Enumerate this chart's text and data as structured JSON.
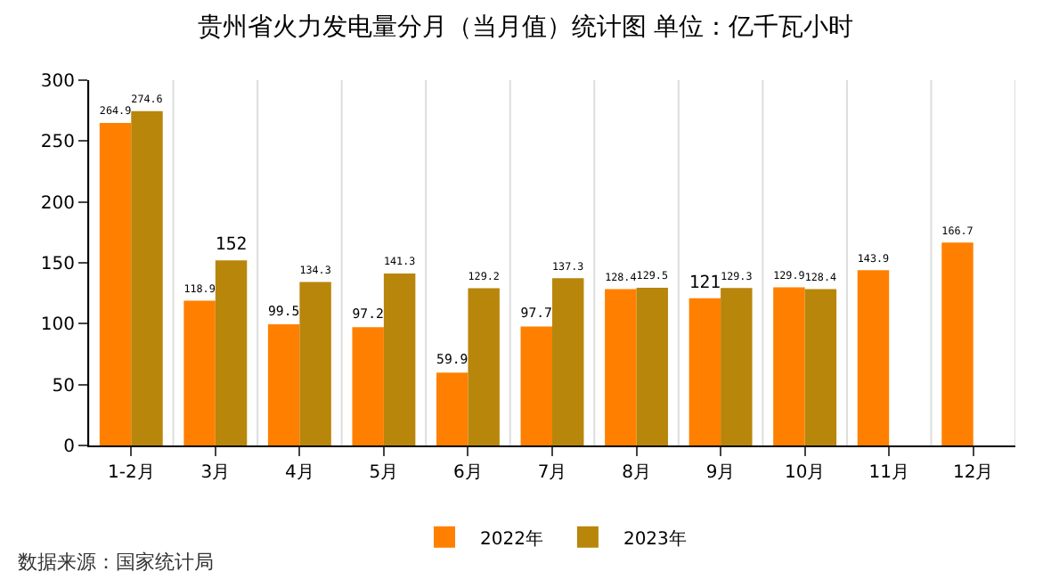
{
  "chart_data": {
    "type": "bar",
    "title": "贵州省火力发电量分月（当月值）统计图 单位：亿千瓦小时",
    "categories": [
      "1-2月",
      "3月",
      "4月",
      "5月",
      "6月",
      "7月",
      "8月",
      "9月",
      "10月",
      "11月",
      "12月"
    ],
    "series": [
      {
        "name": "2022年",
        "color": "#ff8000",
        "values": [
          264.9,
          118.9,
          99.5,
          97.2,
          59.9,
          97.7,
          128.4,
          121,
          129.9,
          143.9,
          166.7
        ]
      },
      {
        "name": "2023年",
        "color": "#b8860b",
        "values": [
          274.6,
          152,
          134.3,
          141.3,
          129.2,
          137.3,
          129.5,
          129.3,
          128.4,
          null,
          null
        ]
      }
    ],
    "ylim": [
      0,
      300
    ],
    "yticks": [
      0,
      50,
      100,
      150,
      200,
      250,
      300
    ],
    "grid": "x",
    "legend": "bottom",
    "data_labels": true,
    "annotations": [
      "数据来源：国家统计局"
    ]
  }
}
